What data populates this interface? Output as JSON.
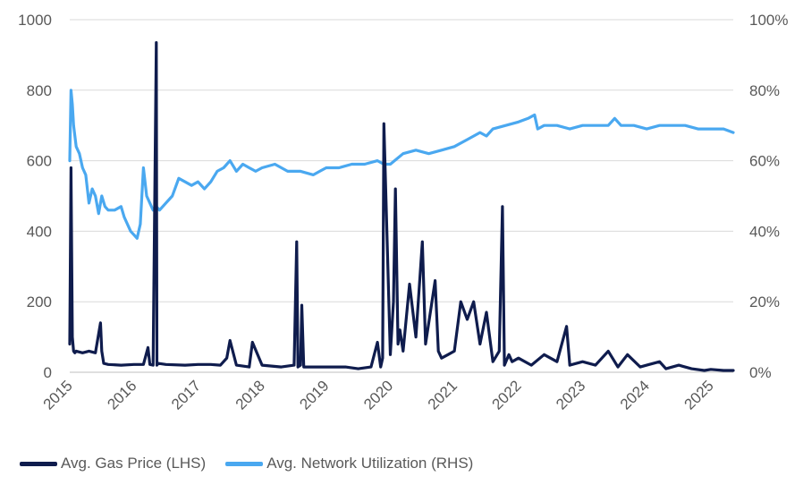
{
  "chart_data": {
    "type": "line",
    "left_axis": {
      "ticks": [
        "1000",
        "800",
        "600",
        "400",
        "200",
        "0"
      ],
      "ylim": [
        0,
        1000
      ]
    },
    "right_axis": {
      "ticks": [
        "100%",
        "80%",
        "60%",
        "40%",
        "20%",
        "0%"
      ],
      "ylim": [
        0,
        100
      ]
    },
    "x_ticks": [
      "2015",
      "2016",
      "2017",
      "2018",
      "2019",
      "2020",
      "2021",
      "2022",
      "2023",
      "2024",
      "2025"
    ],
    "xlim": [
      2015.0,
      2025.35
    ],
    "grid": {
      "horizontal": true,
      "vertical": false
    },
    "legend_position": "bottom-left",
    "colors": {
      "gas": "#0f1c4d",
      "util": "#4aa8f0",
      "grid": "#d9d9d9",
      "text": "#595959"
    },
    "series": [
      {
        "name": "Avg. Gas Price (LHS)",
        "axis": "left",
        "x": [
          2015.0,
          2015.02,
          2015.04,
          2015.06,
          2015.08,
          2015.1,
          2015.2,
          2015.3,
          2015.4,
          2015.48,
          2015.5,
          2015.53,
          2015.6,
          2015.8,
          2016.0,
          2016.15,
          2016.22,
          2016.25,
          2016.3,
          2016.35,
          2016.36,
          2016.38,
          2016.5,
          2016.8,
          2017.0,
          2017.2,
          2017.35,
          2017.45,
          2017.5,
          2017.6,
          2017.8,
          2017.85,
          2018.0,
          2018.3,
          2018.5,
          2018.54,
          2018.56,
          2018.6,
          2018.62,
          2018.65,
          2018.8,
          2019.0,
          2019.3,
          2019.5,
          2019.7,
          2019.8,
          2019.85,
          2019.88,
          2019.9,
          2020.0,
          2020.05,
          2020.08,
          2020.12,
          2020.15,
          2020.2,
          2020.3,
          2020.4,
          2020.5,
          2020.55,
          2020.6,
          2020.7,
          2020.75,
          2020.8,
          2020.9,
          2021.0,
          2021.1,
          2021.2,
          2021.3,
          2021.4,
          2021.5,
          2021.6,
          2021.7,
          2021.75,
          2021.78,
          2021.85,
          2021.9,
          2022.0,
          2022.2,
          2022.4,
          2022.6,
          2022.75,
          2022.8,
          2023.0,
          2023.2,
          2023.4,
          2023.55,
          2023.7,
          2023.9,
          2024.0,
          2024.2,
          2024.3,
          2024.5,
          2024.7,
          2024.9,
          2025.0,
          2025.2,
          2025.35
        ],
        "values": [
          80,
          580,
          100,
          60,
          55,
          60,
          55,
          60,
          55,
          140,
          60,
          25,
          22,
          20,
          22,
          22,
          70,
          22,
          20,
          935,
          20,
          25,
          22,
          20,
          22,
          22,
          20,
          40,
          90,
          20,
          15,
          85,
          20,
          15,
          20,
          370,
          15,
          20,
          190,
          15,
          15,
          15,
          15,
          10,
          15,
          85,
          15,
          40,
          705,
          50,
          200,
          520,
          80,
          120,
          60,
          250,
          100,
          370,
          80,
          140,
          260,
          60,
          40,
          50,
          60,
          200,
          150,
          200,
          80,
          170,
          30,
          60,
          470,
          20,
          50,
          30,
          40,
          20,
          50,
          30,
          130,
          20,
          30,
          20,
          60,
          15,
          50,
          15,
          20,
          30,
          10,
          20,
          10,
          5,
          8,
          5,
          5
        ]
      },
      {
        "name": "Avg. Network Utilization (RHS)",
        "axis": "right",
        "x": [
          2015.0,
          2015.02,
          2015.04,
          2015.06,
          2015.1,
          2015.15,
          2015.2,
          2015.25,
          2015.3,
          2015.35,
          2015.4,
          2015.45,
          2015.5,
          2015.55,
          2015.6,
          2015.7,
          2015.8,
          2015.85,
          2015.9,
          2015.95,
          2016.0,
          2016.05,
          2016.1,
          2016.15,
          2016.2,
          2016.25,
          2016.3,
          2016.35,
          2016.4,
          2016.5,
          2016.6,
          2016.7,
          2016.8,
          2016.9,
          2017.0,
          2017.1,
          2017.2,
          2017.3,
          2017.4,
          2017.5,
          2017.6,
          2017.7,
          2017.8,
          2017.9,
          2018.0,
          2018.2,
          2018.4,
          2018.6,
          2018.8,
          2018.9,
          2019.0,
          2019.2,
          2019.4,
          2019.6,
          2019.8,
          2019.9,
          2020.0,
          2020.2,
          2020.4,
          2020.6,
          2020.8,
          2021.0,
          2021.2,
          2021.4,
          2021.5,
          2021.6,
          2021.8,
          2022.0,
          2022.15,
          2022.25,
          2022.3,
          2022.4,
          2022.6,
          2022.8,
          2023.0,
          2023.2,
          2023.4,
          2023.5,
          2023.6,
          2023.8,
          2024.0,
          2024.2,
          2024.4,
          2024.6,
          2024.8,
          2025.0,
          2025.2,
          2025.35
        ],
        "values": [
          60,
          80,
          76,
          70,
          64,
          62,
          58,
          56,
          48,
          52,
          50,
          45,
          50,
          47,
          46,
          46,
          47,
          44,
          42,
          40,
          39,
          38,
          42,
          58,
          50,
          48,
          46,
          47,
          46,
          48,
          50,
          55,
          54,
          53,
          54,
          52,
          54,
          57,
          58,
          60,
          57,
          59,
          58,
          57,
          58,
          59,
          57,
          57,
          56,
          57,
          58,
          58,
          59,
          59,
          60,
          59,
          59,
          62,
          63,
          62,
          63,
          64,
          66,
          68,
          67,
          69,
          70,
          71,
          72,
          73,
          69,
          70,
          70,
          69,
          70,
          70,
          70,
          72,
          70,
          70,
          69,
          70,
          70,
          70,
          69,
          69,
          69,
          68
        ]
      }
    ]
  }
}
